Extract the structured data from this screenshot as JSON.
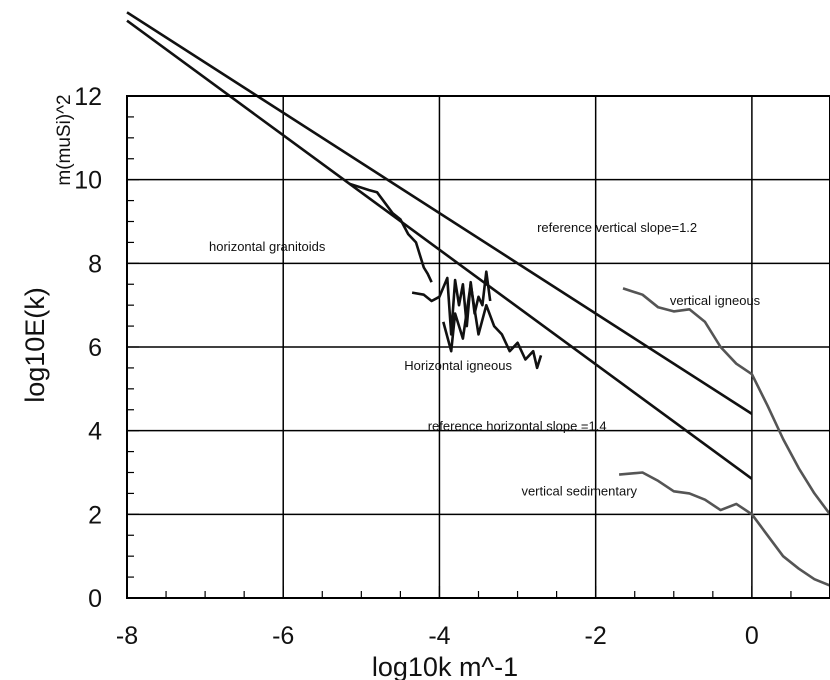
{
  "chart_data": {
    "type": "line",
    "xlabel": "log10k  m^-1",
    "ylabel": "log10E(k)",
    "ylabel_unit": "m(muSi)^2",
    "xlim": [
      -8,
      1
    ],
    "ylim": [
      0,
      12
    ],
    "x_ticks": [
      -8,
      -6,
      -4,
      -2,
      0
    ],
    "y_ticks": [
      0,
      2,
      4,
      6,
      8,
      10,
      12
    ],
    "grid": true,
    "legend": "none",
    "series": [
      {
        "color": "#111111",
        "x": [
          -8.0,
          0.0
        ],
        "y": [
          14.0,
          4.4
        ]
      },
      {
        "color": "#111111",
        "x": [
          -8.0,
          0.0
        ],
        "y": [
          13.8,
          2.85
        ]
      },
      {
        "color": "#111111",
        "x": [
          -5.15,
          -4.9,
          -4.8,
          -4.7,
          -4.6,
          -4.5,
          -4.4,
          -4.3,
          -4.25,
          -4.2,
          -4.15,
          -4.1
        ],
        "y": [
          9.9,
          9.75,
          9.7,
          9.45,
          9.2,
          9.05,
          8.7,
          8.5,
          8.2,
          7.9,
          7.75,
          7.55
        ]
      },
      {
        "color": "#111111",
        "x": [
          -4.35,
          -4.2,
          -4.1,
          -4.0,
          -3.9,
          -3.85,
          -3.8,
          -3.75,
          -3.7,
          -3.65,
          -3.6,
          -3.55,
          -3.5,
          -3.45,
          -3.4,
          -3.35
        ],
        "y": [
          7.3,
          7.25,
          7.1,
          7.2,
          7.65,
          6.3,
          7.6,
          7.0,
          7.5,
          6.5,
          7.55,
          6.8,
          7.2,
          7.0,
          7.8,
          7.1
        ]
      },
      {
        "color": "#111111",
        "x": [
          -3.95,
          -3.85,
          -3.8,
          -3.7,
          -3.6,
          -3.5,
          -3.4,
          -3.3,
          -3.2,
          -3.1,
          -3.0,
          -2.9,
          -2.8,
          -2.75,
          -2.7
        ],
        "y": [
          6.6,
          5.9,
          6.8,
          6.2,
          7.5,
          6.3,
          7.0,
          6.5,
          6.3,
          5.9,
          6.1,
          5.7,
          5.9,
          5.5,
          5.8
        ]
      },
      {
        "color": "#555555",
        "x": [
          -1.65,
          -1.4,
          -1.2,
          -1.0,
          -0.8,
          -0.6,
          -0.4,
          -0.2,
          0.0,
          0.2,
          0.4,
          0.6,
          0.8,
          1.0
        ],
        "y": [
          7.4,
          7.25,
          6.95,
          6.85,
          6.9,
          6.6,
          6.0,
          5.6,
          5.35,
          4.6,
          3.8,
          3.1,
          2.5,
          2.0
        ]
      },
      {
        "color": "#555555",
        "x": [
          -1.7,
          -1.4,
          -1.2,
          -1.0,
          -0.8,
          -0.6,
          -0.4,
          -0.2,
          0.0,
          0.2,
          0.4,
          0.6,
          0.8,
          1.0
        ],
        "y": [
          2.95,
          3.0,
          2.8,
          2.55,
          2.5,
          2.35,
          2.1,
          2.25,
          2.0,
          1.5,
          1.0,
          0.7,
          0.45,
          0.3
        ]
      }
    ],
    "annotations": [
      {
        "text": "reference vertical slope=1.2",
        "x": -2.75,
        "y": 8.75
      },
      {
        "text": "horizontal granitoids",
        "x": -6.95,
        "y": 8.3
      },
      {
        "text": "vertical igneous",
        "x": -1.05,
        "y": 7.0
      },
      {
        "text": "Horizontal igneous",
        "x": -4.45,
        "y": 5.45
      },
      {
        "text": "reference horizontal slope =1.4",
        "x": -4.15,
        "y": 4.0
      },
      {
        "text": "vertical sedimentary",
        "x": -2.95,
        "y": 2.45
      }
    ]
  }
}
